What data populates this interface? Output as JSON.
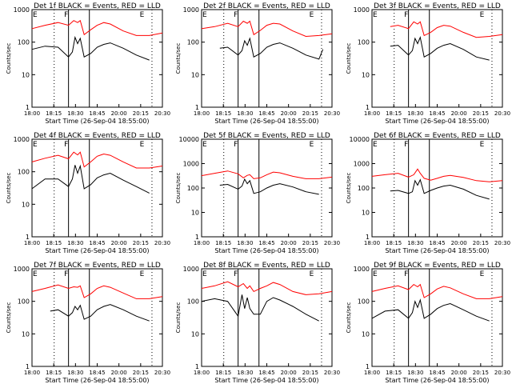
{
  "chart_data": [
    {
      "type": "line",
      "title": "Det 1f BLACK = Events, RED = LLD",
      "xlabel": "Start Time (26-Sep-04 18:55:00)",
      "ylabel": "Counts/sec",
      "x_ticks": [
        "18:00",
        "18:15",
        "18:30",
        "18:45",
        "20:00",
        "20:15",
        "20:30"
      ],
      "y_ticks": [
        "1",
        "10",
        "100",
        "1000"
      ],
      "ylim": [
        1,
        1000
      ],
      "log_scale_y": true,
      "markers": [
        "E",
        "F",
        "E"
      ],
      "series": [
        {
          "color": "#ff0000",
          "x": [
            0.0,
            0.1,
            0.2,
            0.28,
            0.32,
            0.35,
            0.37,
            0.4,
            0.45,
            0.5,
            0.55,
            0.6,
            0.7,
            0.8,
            0.9,
            1.0
          ],
          "y": [
            260,
            330,
            400,
            330,
            460,
            400,
            460,
            170,
            240,
            330,
            400,
            360,
            220,
            160,
            160,
            190
          ]
        },
        {
          "color": "#000000",
          "x": [
            0.0,
            0.1,
            0.2,
            0.28,
            0.31,
            0.33,
            0.35,
            0.37,
            0.4,
            0.45,
            0.5,
            0.55,
            0.6,
            0.7,
            0.8,
            0.9
          ],
          "y": [
            60,
            75,
            70,
            35,
            50,
            140,
            90,
            130,
            35,
            45,
            70,
            85,
            95,
            65,
            40,
            28
          ]
        }
      ]
    },
    {
      "type": "line",
      "title": "Det 2f BLACK = Events, RED = LLD",
      "xlabel": "Start Time (26-Sep-04 18:55:00)",
      "ylabel": "Counts/sec",
      "x_ticks": [
        "18:00",
        "18:15",
        "18:30",
        "18:45",
        "20:00",
        "20:15",
        "20:30"
      ],
      "y_ticks": [
        "1",
        "10",
        "100",
        "1000"
      ],
      "ylim": [
        1,
        1000
      ],
      "log_scale_y": true,
      "markers": [
        "E",
        "F",
        "E"
      ],
      "series": [
        {
          "color": "#ff0000",
          "x": [
            0.0,
            0.1,
            0.2,
            0.28,
            0.32,
            0.35,
            0.37,
            0.4,
            0.45,
            0.5,
            0.55,
            0.6,
            0.7,
            0.8,
            0.9,
            1.0
          ],
          "y": [
            260,
            300,
            380,
            300,
            440,
            380,
            440,
            170,
            230,
            330,
            380,
            360,
            220,
            150,
            160,
            180
          ]
        },
        {
          "color": "#000000",
          "x": [
            0.14,
            0.2,
            0.28,
            0.31,
            0.33,
            0.35,
            0.37,
            0.4,
            0.45,
            0.5,
            0.55,
            0.6,
            0.7,
            0.8,
            0.9,
            0.93
          ],
          "y": [
            65,
            70,
            40,
            55,
            110,
            80,
            130,
            35,
            45,
            70,
            85,
            95,
            65,
            40,
            30,
            60
          ]
        }
      ]
    },
    {
      "type": "line",
      "title": "Det 3f BLACK = Events, RED = LLD",
      "xlabel": "Start Time (26-Sep-04 18:55:00)",
      "ylabel": "Counts/sec",
      "x_ticks": [
        "18:00",
        "18:15",
        "18:30",
        "18:45",
        "20:00",
        "20:15",
        "20:30"
      ],
      "y_ticks": [
        "1",
        "10",
        "100",
        "1000"
      ],
      "ylim": [
        1,
        1000
      ],
      "log_scale_y": true,
      "markers": [
        "E",
        "F",
        "E"
      ],
      "series": [
        {
          "color": "#ff0000",
          "x": [
            0.14,
            0.2,
            0.28,
            0.32,
            0.35,
            0.37,
            0.4,
            0.45,
            0.5,
            0.55,
            0.6,
            0.7,
            0.8,
            0.9,
            1.0
          ],
          "y": [
            300,
            330,
            260,
            420,
            360,
            420,
            160,
            200,
            280,
            330,
            310,
            200,
            140,
            150,
            170
          ]
        },
        {
          "color": "#000000",
          "x": [
            0.14,
            0.2,
            0.28,
            0.31,
            0.33,
            0.35,
            0.37,
            0.4,
            0.45,
            0.5,
            0.55,
            0.6,
            0.7,
            0.8,
            0.9
          ],
          "y": [
            75,
            80,
            40,
            55,
            130,
            90,
            140,
            35,
            45,
            65,
            80,
            90,
            60,
            35,
            28
          ]
        }
      ]
    },
    {
      "type": "line",
      "title": "Det 4f BLACK = Events, RED = LLD",
      "xlabel": "Start Time (26-Sep-04 18:55:00)",
      "ylabel": "Counts/sec",
      "x_ticks": [
        "18:00",
        "18:15",
        "18:30",
        "18:45",
        "20:00",
        "20:15",
        "20:30"
      ],
      "y_ticks": [
        "1",
        "10",
        "100",
        "1000"
      ],
      "ylim": [
        1,
        1000
      ],
      "log_scale_y": true,
      "markers": [
        "E",
        "F",
        "E"
      ],
      "series": [
        {
          "color": "#ff0000",
          "x": [
            0.0,
            0.1,
            0.2,
            0.28,
            0.32,
            0.35,
            0.37,
            0.4,
            0.45,
            0.5,
            0.55,
            0.6,
            0.7,
            0.8,
            0.9,
            1.0
          ],
          "y": [
            200,
            260,
            320,
            250,
            400,
            330,
            400,
            140,
            200,
            300,
            350,
            320,
            200,
            130,
            130,
            150
          ]
        },
        {
          "color": "#000000",
          "x": [
            0.0,
            0.1,
            0.2,
            0.28,
            0.31,
            0.33,
            0.35,
            0.37,
            0.4,
            0.45,
            0.5,
            0.55,
            0.6,
            0.7,
            0.8,
            0.9
          ],
          "y": [
            30,
            60,
            60,
            35,
            60,
            160,
            90,
            150,
            30,
            40,
            65,
            80,
            90,
            55,
            35,
            22
          ]
        }
      ]
    },
    {
      "type": "line",
      "title": "Det 5f BLACK = Events, RED = LLD",
      "xlabel": "Start Time (26-Sep-04 18:55:00)",
      "ylabel": "Counts/sec",
      "x_ticks": [
        "18:00",
        "18:15",
        "18:30",
        "18:45",
        "20:00",
        "20:15",
        "20:30"
      ],
      "y_ticks": [
        "1",
        "10",
        "100",
        "1000",
        "10000"
      ],
      "ylim": [
        1,
        10000
      ],
      "log_scale_y": true,
      "markers": [
        "E",
        "F",
        "E"
      ],
      "series": [
        {
          "color": "#ff0000",
          "x": [
            0.0,
            0.1,
            0.2,
            0.28,
            0.32,
            0.35,
            0.37,
            0.4,
            0.45,
            0.5,
            0.55,
            0.6,
            0.7,
            0.8,
            0.9,
            1.0
          ],
          "y": [
            320,
            400,
            500,
            380,
            260,
            330,
            350,
            240,
            260,
            350,
            450,
            420,
            300,
            240,
            240,
            280
          ]
        },
        {
          "color": "#000000",
          "x": [
            0.14,
            0.2,
            0.28,
            0.31,
            0.33,
            0.35,
            0.37,
            0.4,
            0.45,
            0.5,
            0.55,
            0.6,
            0.7,
            0.8,
            0.9
          ],
          "y": [
            130,
            140,
            90,
            120,
            230,
            150,
            200,
            60,
            70,
            100,
            130,
            150,
            110,
            70,
            55
          ]
        }
      ]
    },
    {
      "type": "line",
      "title": "Det 6f BLACK = Events, RED = LLD",
      "xlabel": "Start Time (26-Sep-04 18:55:00)",
      "ylabel": "Counts/sec",
      "x_ticks": [
        "18:00",
        "18:15",
        "18:30",
        "18:45",
        "20:00",
        "20:15",
        "20:30"
      ],
      "y_ticks": [
        "1",
        "10",
        "100",
        "1000",
        "10000"
      ],
      "ylim": [
        1,
        10000
      ],
      "log_scale_y": true,
      "markers": [
        "E",
        "F",
        "E"
      ],
      "series": [
        {
          "color": "#ff0000",
          "x": [
            0.0,
            0.1,
            0.2,
            0.28,
            0.32,
            0.35,
            0.37,
            0.4,
            0.45,
            0.5,
            0.55,
            0.6,
            0.7,
            0.8,
            0.9,
            1.0
          ],
          "y": [
            300,
            350,
            400,
            280,
            350,
            600,
            400,
            250,
            210,
            250,
            300,
            330,
            270,
            200,
            180,
            200
          ]
        },
        {
          "color": "#000000",
          "x": [
            0.14,
            0.2,
            0.28,
            0.31,
            0.33,
            0.35,
            0.37,
            0.4,
            0.45,
            0.5,
            0.55,
            0.6,
            0.7,
            0.8,
            0.9
          ],
          "y": [
            75,
            80,
            60,
            70,
            200,
            130,
            220,
            60,
            80,
            100,
            120,
            130,
            90,
            50,
            35
          ]
        }
      ]
    },
    {
      "type": "line",
      "title": "Det 7f BLACK = Events, RED = LLD",
      "xlabel": "Start Time (26-Sep-04 18:55:00)",
      "ylabel": "Counts/sec",
      "x_ticks": [
        "18:00",
        "18:15",
        "18:30",
        "18:45",
        "20:00",
        "20:15",
        "20:30"
      ],
      "y_ticks": [
        "1",
        "10",
        "100",
        "1000"
      ],
      "ylim": [
        1,
        1000
      ],
      "log_scale_y": true,
      "markers": [
        "E",
        "F",
        "E"
      ],
      "series": [
        {
          "color": "#ff0000",
          "x": [
            0.0,
            0.1,
            0.2,
            0.28,
            0.32,
            0.35,
            0.37,
            0.4,
            0.45,
            0.5,
            0.55,
            0.6,
            0.7,
            0.8,
            0.9,
            1.0
          ],
          "y": [
            200,
            250,
            320,
            250,
            280,
            270,
            300,
            130,
            170,
            250,
            300,
            270,
            180,
            120,
            120,
            140
          ]
        },
        {
          "color": "#000000",
          "x": [
            0.14,
            0.2,
            0.28,
            0.31,
            0.33,
            0.35,
            0.37,
            0.4,
            0.45,
            0.5,
            0.55,
            0.6,
            0.7,
            0.8,
            0.9
          ],
          "y": [
            50,
            55,
            35,
            45,
            70,
            55,
            75,
            28,
            35,
            55,
            70,
            80,
            55,
            35,
            25
          ]
        }
      ]
    },
    {
      "type": "line",
      "title": "Det 8f BLACK = Events, RED = LLD",
      "xlabel": "Start Time (26-Sep-04 18:55:00)",
      "ylabel": "Counts/sec",
      "x_ticks": [
        "18:00",
        "18:15",
        "18:30",
        "18:45",
        "20:00",
        "20:15",
        "20:30"
      ],
      "y_ticks": [
        "1",
        "10",
        "100",
        "1000"
      ],
      "ylim": [
        1,
        1000
      ],
      "log_scale_y": true,
      "markers": [
        "E",
        "F",
        "E"
      ],
      "series": [
        {
          "color": "#ff0000",
          "x": [
            0.0,
            0.1,
            0.2,
            0.28,
            0.32,
            0.35,
            0.37,
            0.4,
            0.45,
            0.5,
            0.55,
            0.6,
            0.7,
            0.8,
            0.9,
            1.0
          ],
          "y": [
            250,
            300,
            400,
            280,
            350,
            250,
            300,
            200,
            250,
            300,
            380,
            330,
            200,
            160,
            170,
            200
          ]
        },
        {
          "color": "#000000",
          "x": [
            0.0,
            0.1,
            0.2,
            0.28,
            0.31,
            0.33,
            0.35,
            0.37,
            0.4,
            0.45,
            0.5,
            0.55,
            0.6,
            0.7,
            0.8,
            0.9
          ],
          "y": [
            100,
            120,
            100,
            35,
            160,
            60,
            130,
            60,
            40,
            40,
            100,
            130,
            110,
            70,
            40,
            25
          ]
        }
      ]
    },
    {
      "type": "line",
      "title": "Det 9f BLACK = Events, RED = LLD",
      "xlabel": "Start Time (26-Sep-04 18:55:00)",
      "ylabel": "Counts/sec",
      "x_ticks": [
        "18:00",
        "18:15",
        "18:30",
        "18:45",
        "20:00",
        "20:15",
        "20:30"
      ],
      "y_ticks": [
        "1",
        "10",
        "100",
        "1000"
      ],
      "ylim": [
        1,
        1000
      ],
      "log_scale_y": true,
      "markers": [
        "E",
        "F",
        "E"
      ],
      "series": [
        {
          "color": "#ff0000",
          "x": [
            0.0,
            0.1,
            0.2,
            0.28,
            0.32,
            0.35,
            0.37,
            0.4,
            0.45,
            0.5,
            0.55,
            0.6,
            0.7,
            0.8,
            0.9,
            1.0
          ],
          "y": [
            200,
            250,
            300,
            230,
            330,
            280,
            330,
            130,
            170,
            240,
            290,
            260,
            170,
            120,
            120,
            140
          ]
        },
        {
          "color": "#000000",
          "x": [
            0.0,
            0.1,
            0.2,
            0.28,
            0.31,
            0.33,
            0.35,
            0.37,
            0.4,
            0.45,
            0.5,
            0.55,
            0.6,
            0.7,
            0.8,
            0.9
          ],
          "y": [
            30,
            50,
            55,
            30,
            45,
            100,
            65,
            110,
            30,
            40,
            60,
            75,
            85,
            55,
            35,
            25
          ]
        }
      ]
    }
  ]
}
